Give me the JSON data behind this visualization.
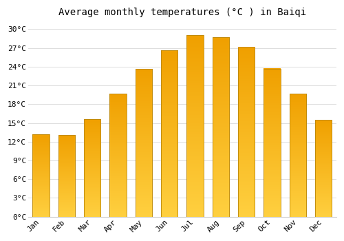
{
  "title": "Average monthly temperatures (°C ) in Baiqi",
  "months": [
    "Jan",
    "Feb",
    "Mar",
    "Apr",
    "May",
    "Jun",
    "Jul",
    "Aug",
    "Sep",
    "Oct",
    "Nov",
    "Dec"
  ],
  "temperatures": [
    13.2,
    13.1,
    15.6,
    19.7,
    23.6,
    26.6,
    29.0,
    28.7,
    27.1,
    23.7,
    19.7,
    15.5
  ],
  "ylim": [
    0,
    31
  ],
  "yticks": [
    0,
    3,
    6,
    9,
    12,
    15,
    18,
    21,
    24,
    27,
    30
  ],
  "ytick_labels": [
    "0°C",
    "3°C",
    "6°C",
    "9°C",
    "12°C",
    "15°C",
    "18°C",
    "21°C",
    "24°C",
    "27°C",
    "30°C"
  ],
  "background_color": "#ffffff",
  "grid_color": "#dddddd",
  "title_fontsize": 10,
  "tick_fontsize": 8,
  "bar_color_bottom": "#FFD040",
  "bar_color_top": "#F0A000",
  "bar_edge_color": "#B8860B",
  "bar_width": 0.65
}
